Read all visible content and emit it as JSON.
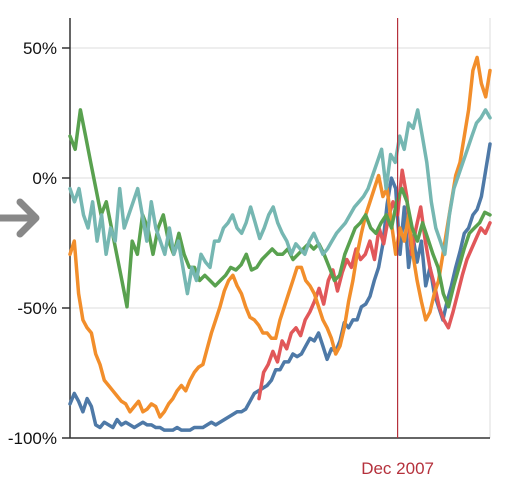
{
  "chart_data": {
    "type": "line",
    "ylim": [
      -100,
      60
    ],
    "y_ticks": [
      {
        "value": 50,
        "label": "50%"
      },
      {
        "value": 0,
        "label": "0%"
      },
      {
        "value": -50,
        "label": "-50%"
      },
      {
        "value": -100,
        "label": "-100%"
      }
    ],
    "grid": true,
    "marker": {
      "label": "Dec 2007",
      "x": 0.78,
      "color": "#b5313c"
    },
    "nav_arrow": {
      "icon": "arrow-right-icon",
      "color": "#888888"
    },
    "series": [
      {
        "color": "#4e79a7",
        "x_start": 0.0,
        "values": [
          -87,
          -83,
          -86,
          -90,
          -85,
          -88,
          -95,
          -96,
          -94,
          -95,
          -96,
          -93,
          -95,
          -94,
          -95,
          -96,
          -95,
          -94,
          -95,
          -95,
          -96,
          -96,
          -97,
          -97,
          -97,
          -96,
          -97,
          -97,
          -97,
          -96,
          -96,
          -96,
          -95,
          -94,
          -95,
          -94,
          -93,
          -92,
          -91,
          -90,
          -90,
          -89,
          -86,
          -83,
          -82,
          -81,
          -80,
          -78,
          -74,
          -74,
          -71,
          -71,
          -68,
          -69,
          -68,
          -65,
          -62,
          -63,
          -60,
          -65,
          -70,
          -66,
          -67,
          -63,
          -56,
          -58,
          -55,
          -55,
          -50,
          -49,
          -46,
          -40,
          -35,
          -26,
          -11,
          -1,
          -5,
          -30,
          -12,
          -35,
          -23,
          -33,
          -25,
          -42,
          -35,
          -45,
          -50,
          -55,
          -48,
          -42,
          -35,
          -29,
          -22,
          -20,
          -15,
          -13,
          -8,
          2,
          12
        ]
      },
      {
        "color": "#e15759",
        "x_start": 0.45,
        "values": [
          -85,
          -75,
          -72,
          -67,
          -71,
          -63,
          -66,
          -60,
          -58,
          -61,
          -55,
          -52,
          -48,
          -43,
          -49,
          -40,
          -36,
          -44,
          -37,
          -32,
          -35,
          -28,
          -32,
          -30,
          -25,
          -32,
          -20,
          -26,
          -16,
          -10,
          -15,
          2,
          -8,
          -30,
          -20,
          -12,
          -25,
          -35,
          -42,
          -50,
          -55,
          -58,
          -52,
          -45,
          -38,
          -32,
          -28,
          -24,
          -20,
          -22,
          -18
        ]
      },
      {
        "color": "#f28e2b",
        "x_start": 0.0,
        "values": [
          -30,
          -25,
          -45,
          -55,
          -58,
          -60,
          -68,
          -72,
          -78,
          -80,
          -82,
          -84,
          -86,
          -87,
          -90,
          -88,
          -86,
          -90,
          -89,
          -87,
          -88,
          -92,
          -90,
          -87,
          -85,
          -82,
          -80,
          -82,
          -78,
          -75,
          -73,
          -72,
          -66,
          -60,
          -55,
          -50,
          -44,
          -40,
          -38,
          -42,
          -45,
          -50,
          -54,
          -55,
          -57,
          -60,
          -60,
          -62,
          -62,
          -55,
          -50,
          -45,
          -40,
          -35,
          -35,
          -40,
          -42,
          -45,
          -50,
          -55,
          -58,
          -62,
          -68,
          -65,
          -58,
          -48,
          -40,
          -30,
          -22,
          -15,
          -10,
          -5,
          0,
          -8,
          -5,
          -18,
          -30,
          -20,
          -25,
          -15,
          -30,
          -40,
          -48,
          -55,
          -52,
          -45,
          -40,
          -30,
          -20,
          -10,
          0,
          5,
          15,
          25,
          40,
          45,
          35,
          30,
          40
        ]
      },
      {
        "color": "#59a14f",
        "x_start": 0.0,
        "values": [
          15,
          10,
          25,
          15,
          5,
          -5,
          -15,
          -10,
          -20,
          -30,
          -40,
          -50,
          -25,
          -30,
          -15,
          -20,
          -30,
          -20,
          -15,
          -25,
          -30,
          -22,
          -30,
          -35,
          -35,
          -40,
          -38,
          -40,
          -42,
          -40,
          -38,
          -35,
          -36,
          -34,
          -30,
          -36,
          -35,
          -32,
          -30,
          -28,
          -30,
          -30,
          -28,
          -32,
          -30,
          -28,
          -26,
          -28,
          -26,
          -30,
          -35,
          -40,
          -38,
          -30,
          -25,
          -20,
          -18,
          -15,
          -20,
          -22,
          -18,
          -15,
          -20,
          -10,
          -5,
          -10,
          -20,
          -25,
          -18,
          -24,
          -30,
          -35,
          -45,
          -50,
          -42,
          -35,
          -28,
          -22,
          -20,
          -18,
          -14,
          -15
        ]
      },
      {
        "color": "#76b7b2",
        "x_start": 0.0,
        "values": [
          -5,
          -10,
          -5,
          -15,
          -20,
          -10,
          -25,
          -15,
          -30,
          -20,
          -25,
          -5,
          -20,
          -15,
          -10,
          -5,
          -15,
          -25,
          -10,
          -20,
          -25,
          -30,
          -20,
          -30,
          -25,
          -35,
          -45,
          -35,
          -40,
          -30,
          -33,
          -35,
          -25,
          -25,
          -20,
          -18,
          -15,
          -20,
          -22,
          -18,
          -12,
          -18,
          -24,
          -20,
          -15,
          -12,
          -18,
          -22,
          -25,
          -30,
          -26,
          -28,
          -30,
          -25,
          -22,
          -26,
          -30,
          -28,
          -25,
          -22,
          -20,
          -18,
          -15,
          -12,
          -10,
          -8,
          -5,
          0,
          5,
          10,
          -5,
          8,
          5,
          15,
          10,
          20,
          18,
          25,
          15,
          5,
          -10,
          -20,
          -25,
          -30,
          -15,
          -5,
          0,
          5,
          10,
          15,
          20,
          22,
          25,
          22
        ]
      }
    ]
  }
}
